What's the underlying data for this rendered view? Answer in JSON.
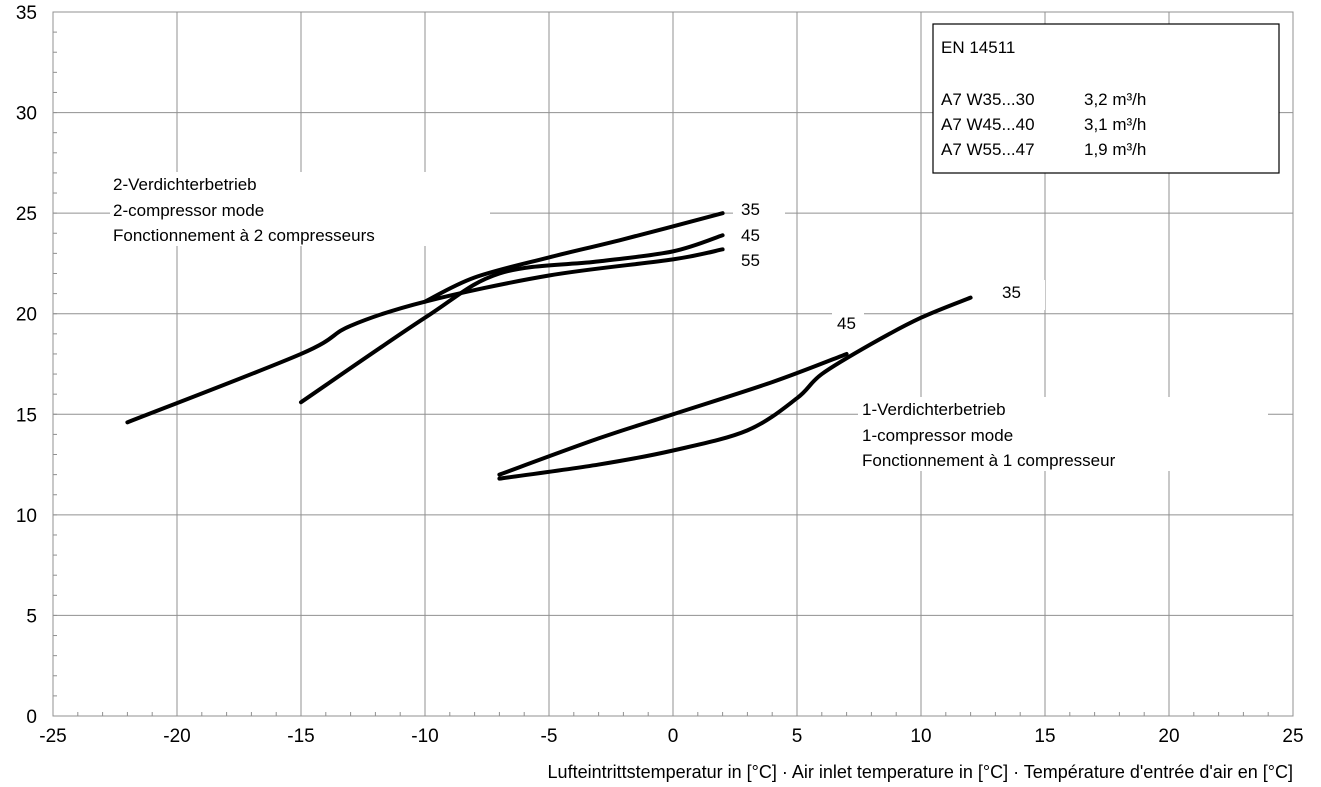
{
  "chart_data": {
    "type": "line",
    "title": "",
    "xlabel": "Lufteintrittstemperatur in [°C] · Air inlet temperature in [°C] · Température d'entrée d'air en [°C]",
    "ylabel": "",
    "xlim": [
      -25,
      25
    ],
    "ylim": [
      0,
      35
    ],
    "x_ticks": [
      "-25",
      "-20",
      "-15",
      "-10",
      "-5",
      "0",
      "5",
      "10",
      "15",
      "20",
      "25"
    ],
    "y_ticks": [
      "0",
      "5",
      "10",
      "15",
      "20",
      "25",
      "30",
      "35"
    ],
    "grid": true,
    "series": [
      {
        "name": "35",
        "group": "2-compressor",
        "points": [
          [
            -10,
            20.6
          ],
          [
            -8,
            21.8
          ],
          [
            -5,
            22.8
          ],
          [
            -2,
            23.7
          ],
          [
            2,
            25.0
          ]
        ]
      },
      {
        "name": "45",
        "group": "2-compressor",
        "points": [
          [
            -15,
            15.6
          ],
          [
            -10,
            19.8
          ],
          [
            -7,
            22.0
          ],
          [
            -3,
            22.6
          ],
          [
            0,
            23.1
          ],
          [
            2,
            23.9
          ]
        ]
      },
      {
        "name": "55",
        "group": "2-compressor",
        "points": [
          [
            -22,
            14.6
          ],
          [
            -15,
            18.0
          ],
          [
            -13,
            19.4
          ],
          [
            -10,
            20.6
          ],
          [
            -5,
            21.9
          ],
          [
            0,
            22.7
          ],
          [
            2,
            23.2
          ]
        ]
      },
      {
        "name": "35",
        "group": "1-compressor",
        "points": [
          [
            -7,
            11.8
          ],
          [
            -3,
            12.5
          ],
          [
            0,
            13.2
          ],
          [
            3,
            14.2
          ],
          [
            5,
            15.8
          ],
          [
            6,
            17.0
          ],
          [
            8,
            18.5
          ],
          [
            10,
            19.8
          ],
          [
            12,
            20.8
          ]
        ]
      },
      {
        "name": "45",
        "group": "1-compressor",
        "points": [
          [
            -7,
            12.0
          ],
          [
            -3,
            13.8
          ],
          [
            0,
            15.0
          ],
          [
            4,
            16.6
          ],
          [
            7,
            18.0
          ]
        ]
      }
    ],
    "annotations": {
      "group2": [
        "2-Verdichterbetrieb",
        "2-compressor mode",
        "Fonctionnement à 2 compresseurs"
      ],
      "group1": [
        "1-Verdichterbetrieb",
        "1-compressor mode",
        "Fonctionnement à 1 compresseur"
      ],
      "labels2": [
        "35",
        "45",
        "55"
      ],
      "labels1": [
        "45",
        "35"
      ]
    },
    "legend": {
      "title": "EN 14511",
      "rows": [
        {
          "label": "A7 W35...30",
          "value": "3,2 m³/h"
        },
        {
          "label": "A7 W45...40",
          "value": "3,1 m³/h"
        },
        {
          "label": "A7 W55...47",
          "value": "1,9 m³/h"
        }
      ],
      "position": "top-right"
    },
    "colors": {
      "lines": "#000000",
      "grid": "#909090",
      "background": "#ffffff"
    }
  }
}
